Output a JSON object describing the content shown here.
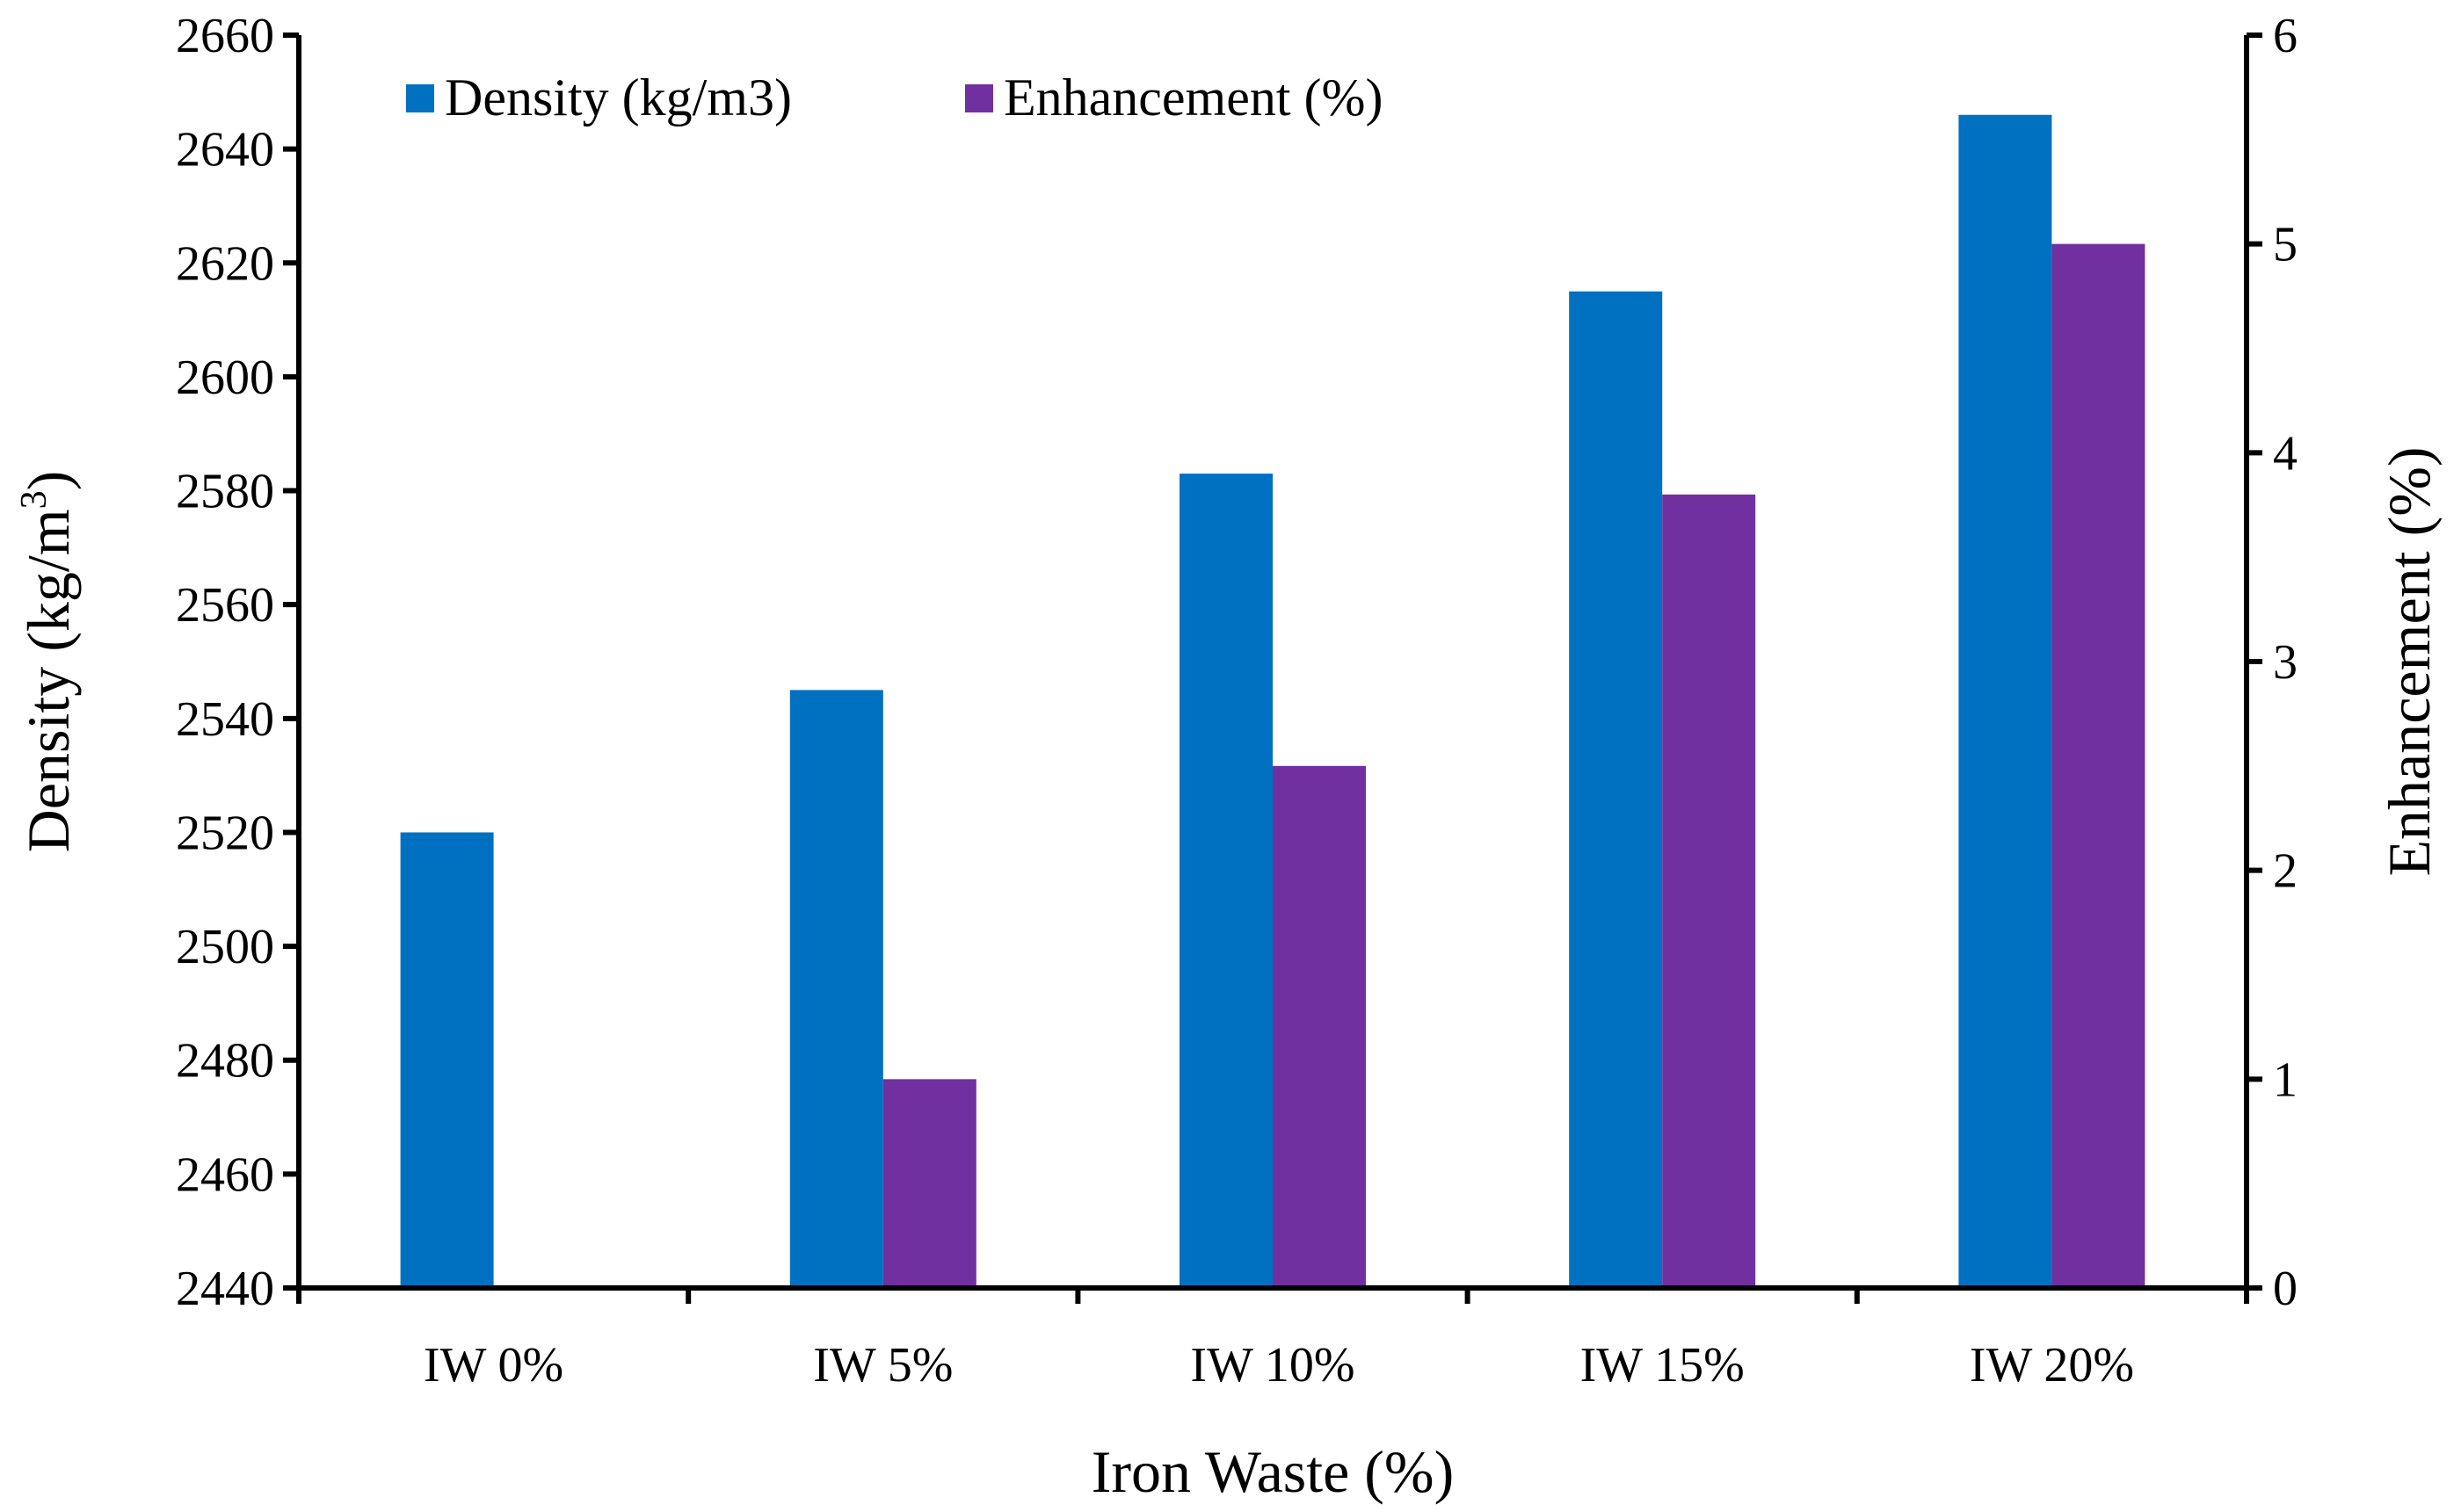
{
  "chart_data": {
    "type": "bar",
    "title": "",
    "categories": [
      "IW 0%",
      "IW 5%",
      "IW 10%",
      "IW 15%",
      "IW 20%"
    ],
    "series": [
      {
        "name": "Density (kg/m3)",
        "axis": "left",
        "color": "#0070C0",
        "values": [
          2520,
          2545,
          2583,
          2615,
          2646
        ]
      },
      {
        "name": "Enhancement (%)",
        "axis": "right",
        "color": "#7030A0",
        "values": [
          0,
          1.0,
          2.5,
          3.8,
          5.0
        ]
      }
    ],
    "xlabel": "Iron Waste (%)",
    "ylabel_left": "Density (kg/m",
    "ylabel_left_superscript": "3",
    "ylabel_left_suffix": ")",
    "ylabel_right": "Enhancement (%)",
    "ylim_left": [
      2440,
      2660
    ],
    "ylim_right": [
      0,
      6
    ],
    "yticks_left": [
      "2440",
      "2460",
      "2480",
      "2500",
      "2520",
      "2540",
      "2560",
      "2580",
      "2600",
      "2620",
      "2640",
      "2660"
    ],
    "yticks_right": [
      "0",
      "1",
      "2",
      "3",
      "4",
      "5",
      "6"
    ],
    "legend_position": "top",
    "grid": false
  }
}
